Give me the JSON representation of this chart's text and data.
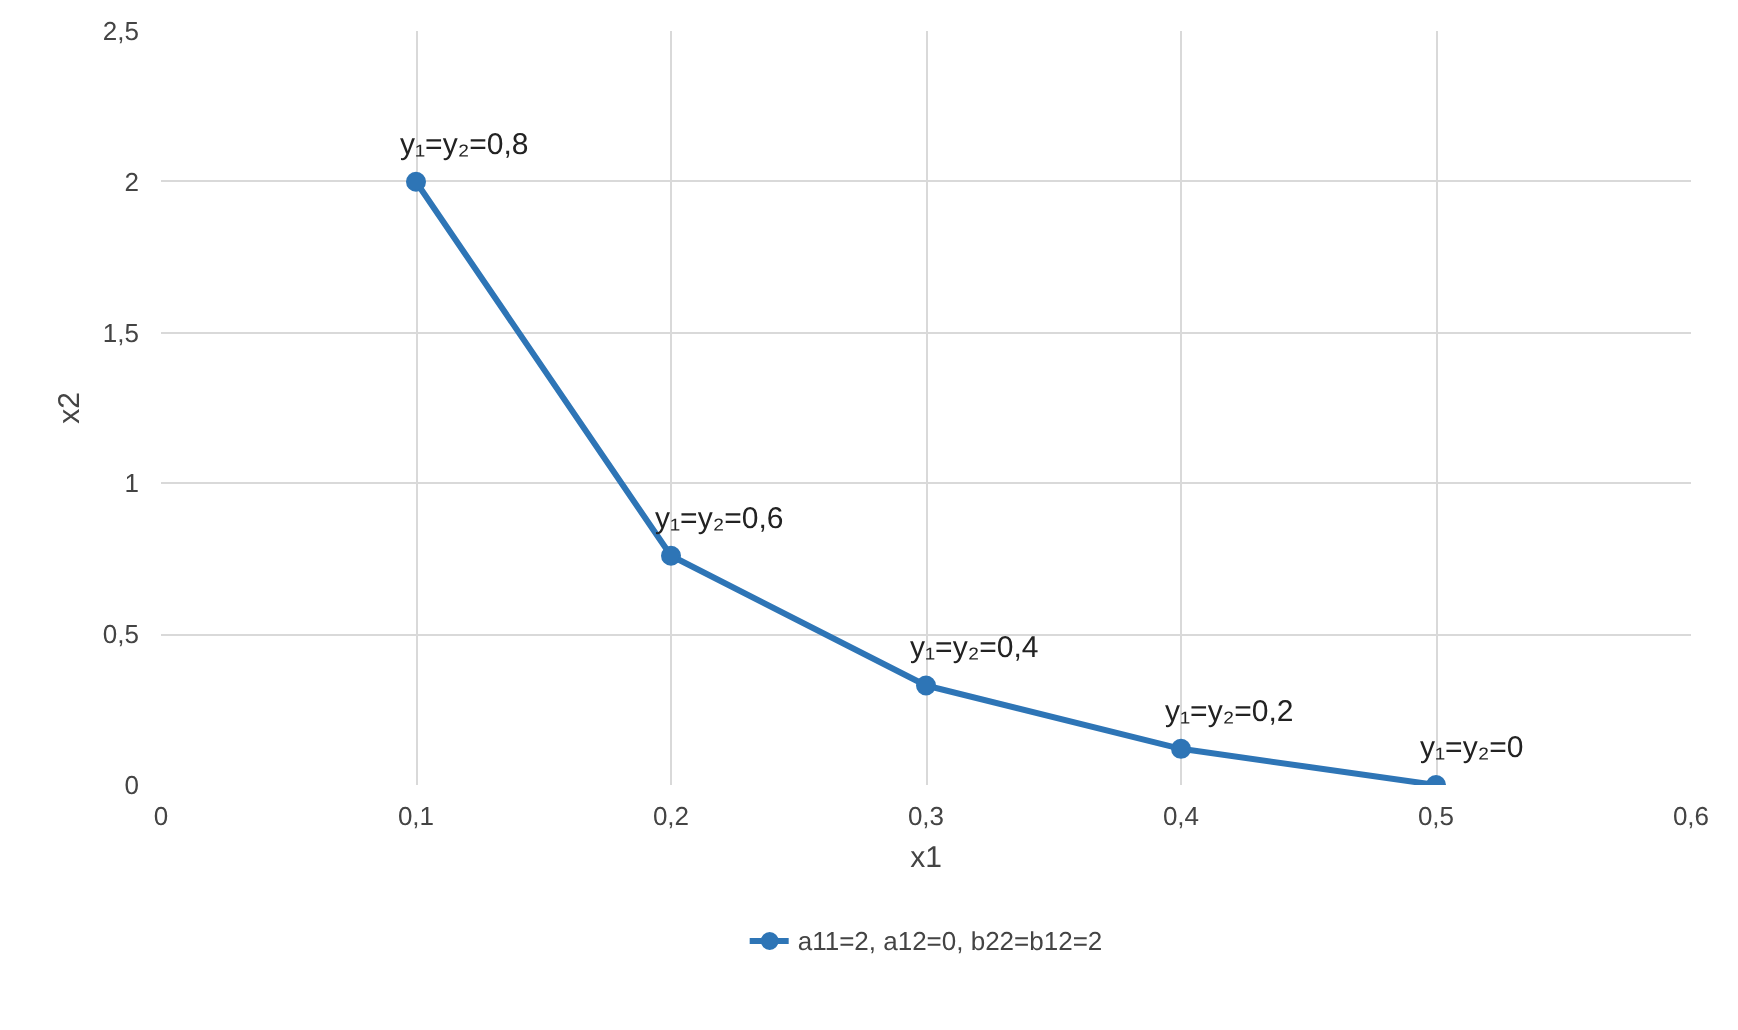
{
  "chart_data": {
    "type": "line",
    "xlabel": "x1",
    "ylabel": "x2",
    "x": [
      0.1,
      0.2,
      0.3,
      0.4,
      0.5
    ],
    "series": [
      {
        "name": "a11=2, a12=0, b22=b12=2",
        "color": "#2e75b6",
        "values": [
          2,
          0.76,
          0.33,
          0.12,
          0
        ]
      }
    ],
    "xlim": [
      0,
      0.6
    ],
    "ylim": [
      0,
      2.5
    ],
    "xticks": [
      0,
      {
        "value": 0.1,
        "label": "0,1"
      },
      {
        "value": 0.2,
        "label": "0,2"
      },
      {
        "value": 0.3,
        "label": "0,3"
      },
      {
        "value": 0.4,
        "label": "0,4"
      },
      {
        "value": 0.5,
        "label": "0,5"
      },
      {
        "value": 0.6,
        "label": "0,6"
      }
    ],
    "yticks": [
      0,
      {
        "value": 0.5,
        "label": "0,5"
      },
      1,
      {
        "value": 1.5,
        "label": "1,5"
      },
      2,
      {
        "value": 2.5,
        "label": "2,5"
      }
    ],
    "annotations": [
      {
        "text": "y₁=y₂=0,8",
        "x": 0.1,
        "y": 2
      },
      {
        "text": "y₁=y₂=0,6",
        "x": 0.2,
        "y": 0.76
      },
      {
        "text": "y₁=y₂=0,4",
        "x": 0.3,
        "y": 0.33
      },
      {
        "text": "y₁=y₂=0,2",
        "x": 0.4,
        "y": 0.12
      },
      {
        "text": "y₁=y₂=0",
        "x": 0.5,
        "y": 0
      }
    ],
    "grid": true,
    "legend": "bottom",
    "marker": "circle",
    "line_style": "solid"
  }
}
